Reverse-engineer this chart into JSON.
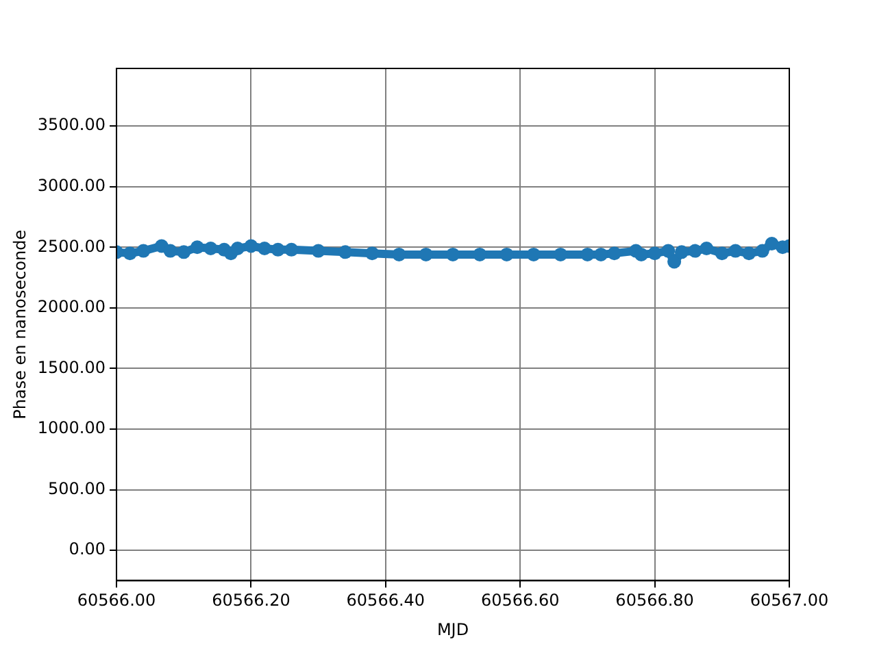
{
  "chart_data": {
    "type": "line",
    "xlabel": "MJD",
    "ylabel": "Phase en nanoseconde",
    "xlim": [
      60566,
      60567
    ],
    "ylim": [
      -250,
      3975
    ],
    "xticks": [
      {
        "value": 60566,
        "label": "60566.00"
      },
      {
        "value": 60566.2,
        "label": "60566.20"
      },
      {
        "value": 60566.4,
        "label": "60566.40"
      },
      {
        "value": 60566.6,
        "label": "60566.60"
      },
      {
        "value": 60566.8,
        "label": "60566.80"
      },
      {
        "value": 60567,
        "label": "60567.00"
      }
    ],
    "yticks": [
      {
        "value": 0,
        "label": "0.00"
      },
      {
        "value": 500,
        "label": "500.00"
      },
      {
        "value": 1000,
        "label": "1000.00"
      },
      {
        "value": 1500,
        "label": "1500.00"
      },
      {
        "value": 2000,
        "label": "2000.00"
      },
      {
        "value": 2500,
        "label": "2500.00"
      },
      {
        "value": 3000,
        "label": "3000.00"
      },
      {
        "value": 3500,
        "label": "3500.00"
      }
    ],
    "grid": true,
    "legend": false,
    "series": [
      {
        "color": "#1f77b4",
        "marker": "circle",
        "x": [
          60566,
          60566.02,
          60566.04,
          60566.067,
          60566.08,
          60566.1,
          60566.12,
          60566.14,
          60566.16,
          60566.17,
          60566.18,
          60566.2,
          60566.22,
          60566.24,
          60566.26,
          60566.3,
          60566.34,
          60566.38,
          60566.42,
          60566.46,
          60566.5,
          60566.54,
          60566.58,
          60566.62,
          60566.66,
          60566.7,
          60566.72,
          60566.74,
          60566.772,
          60566.78,
          60566.8,
          60566.82,
          60566.829,
          60566.84,
          60566.86,
          60566.877,
          60566.9,
          60566.92,
          60566.94,
          60566.96,
          60566.974,
          60566.99,
          60567
        ],
        "values": [
          2460,
          2450,
          2470,
          2510,
          2470,
          2460,
          2500,
          2490,
          2480,
          2450,
          2490,
          2510,
          2490,
          2480,
          2480,
          2470,
          2460,
          2450,
          2440,
          2440,
          2440,
          2440,
          2440,
          2440,
          2440,
          2440,
          2440,
          2450,
          2470,
          2440,
          2450,
          2470,
          2380,
          2460,
          2470,
          2490,
          2450,
          2470,
          2450,
          2470,
          2530,
          2500,
          2510
        ]
      }
    ]
  }
}
